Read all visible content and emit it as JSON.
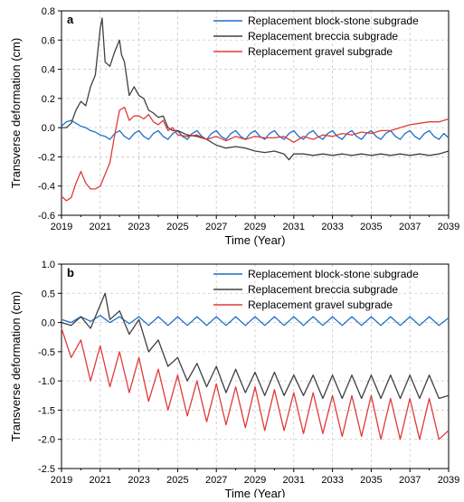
{
  "figure": {
    "panels": [
      {
        "label": "a",
        "xlabel": "Time (Year)",
        "ylabel": "Transverse deformation (cm)"
      },
      {
        "label": "b",
        "xlabel": "Time (Year)",
        "ylabel": "Transverse deformation (cm)"
      }
    ]
  },
  "chart_data": [
    {
      "type": "line",
      "panel": "a",
      "title": "",
      "xlabel": "Time (Year)",
      "ylabel": "Transverse deformation (cm)",
      "xlim": [
        2019,
        2039
      ],
      "ylim": [
        -0.6,
        0.8
      ],
      "xticks": [
        "2019",
        "2021",
        "2023",
        "2025",
        "2027",
        "2029",
        "2031",
        "2033",
        "2035",
        "2037",
        "2039"
      ],
      "yticks": [
        "-0.6",
        "-0.4",
        "-0.2",
        "0.0",
        "0.2",
        "0.4",
        "0.6",
        "0.8"
      ],
      "grid": true,
      "legend_position": "top-right",
      "series": [
        {
          "name": "Replacement block-stone subgrade",
          "color": "#1f6fc9",
          "x": [
            2019.0,
            2019.25,
            2019.5,
            2019.75,
            2020.0,
            2020.25,
            2020.5,
            2020.75,
            2021.0,
            2021.25,
            2021.5,
            2021.75,
            2022.0,
            2022.25,
            2022.5,
            2022.75,
            2023.0,
            2023.25,
            2023.5,
            2023.75,
            2024.0,
            2024.25,
            2024.5,
            2024.75,
            2025.0,
            2025.25,
            2025.5,
            2025.75,
            2026.0,
            2026.25,
            2026.5,
            2026.75,
            2027.0,
            2027.25,
            2027.5,
            2027.75,
            2028.0,
            2028.25,
            2028.5,
            2028.75,
            2029.0,
            2029.25,
            2029.5,
            2029.75,
            2030.0,
            2030.25,
            2030.5,
            2030.75,
            2031.0,
            2031.25,
            2031.5,
            2031.75,
            2032.0,
            2032.25,
            2032.5,
            2032.75,
            2033.0,
            2033.25,
            2033.5,
            2033.75,
            2034.0,
            2034.25,
            2034.5,
            2034.75,
            2035.0,
            2035.25,
            2035.5,
            2035.75,
            2036.0,
            2036.25,
            2036.5,
            2036.75,
            2037.0,
            2037.25,
            2037.5,
            2037.75,
            2038.0,
            2038.25,
            2038.5,
            2038.75,
            2039.0
          ],
          "y": [
            0.01,
            0.04,
            0.05,
            0.03,
            0.01,
            0.0,
            -0.02,
            -0.03,
            -0.05,
            -0.06,
            -0.08,
            -0.04,
            -0.02,
            -0.06,
            -0.08,
            -0.04,
            -0.02,
            -0.06,
            -0.08,
            -0.04,
            -0.02,
            -0.06,
            -0.08,
            -0.04,
            -0.02,
            -0.06,
            -0.08,
            -0.04,
            -0.02,
            -0.06,
            -0.08,
            -0.04,
            -0.02,
            -0.06,
            -0.08,
            -0.04,
            -0.02,
            -0.06,
            -0.08,
            -0.04,
            -0.02,
            -0.06,
            -0.08,
            -0.04,
            -0.02,
            -0.06,
            -0.08,
            -0.04,
            -0.02,
            -0.06,
            -0.08,
            -0.04,
            -0.02,
            -0.06,
            -0.08,
            -0.04,
            -0.02,
            -0.06,
            -0.08,
            -0.04,
            -0.02,
            -0.06,
            -0.08,
            -0.04,
            -0.02,
            -0.06,
            -0.08,
            -0.04,
            -0.02,
            -0.06,
            -0.08,
            -0.04,
            -0.02,
            -0.06,
            -0.08,
            -0.04,
            -0.02,
            -0.06,
            -0.08,
            -0.04,
            -0.07
          ]
        },
        {
          "name": "Replacement breccia subgrade",
          "color": "#404040",
          "x": [
            2019.0,
            2019.25,
            2019.5,
            2019.75,
            2020.0,
            2020.25,
            2020.5,
            2020.75,
            2021.0,
            2021.1,
            2021.25,
            2021.5,
            2021.75,
            2022.0,
            2022.1,
            2022.25,
            2022.5,
            2022.75,
            2023.0,
            2023.25,
            2023.5,
            2023.75,
            2024.0,
            2024.25,
            2024.5,
            2024.75,
            2025.0,
            2025.5,
            2026.0,
            2026.5,
            2027.0,
            2027.5,
            2028.0,
            2028.5,
            2029.0,
            2029.5,
            2030.0,
            2030.5,
            2030.75,
            2031.0,
            2031.5,
            2032.0,
            2032.5,
            2033.0,
            2033.5,
            2034.0,
            2034.5,
            2035.0,
            2035.5,
            2036.0,
            2036.5,
            2037.0,
            2037.5,
            2038.0,
            2038.5,
            2039.0
          ],
          "y": [
            0.0,
            0.0,
            0.03,
            0.12,
            0.18,
            0.15,
            0.28,
            0.36,
            0.68,
            0.75,
            0.45,
            0.42,
            0.52,
            0.6,
            0.5,
            0.45,
            0.22,
            0.28,
            0.22,
            0.2,
            0.12,
            0.1,
            0.07,
            0.08,
            0.0,
            -0.02,
            -0.02,
            -0.05,
            -0.06,
            -0.08,
            -0.12,
            -0.14,
            -0.13,
            -0.14,
            -0.16,
            -0.17,
            -0.16,
            -0.18,
            -0.22,
            -0.18,
            -0.18,
            -0.19,
            -0.18,
            -0.19,
            -0.18,
            -0.19,
            -0.18,
            -0.19,
            -0.18,
            -0.19,
            -0.18,
            -0.19,
            -0.18,
            -0.19,
            -0.18,
            -0.16
          ]
        },
        {
          "name": "Replacement gravel subgrade",
          "color": "#e03b3b",
          "x": [
            2019.0,
            2019.25,
            2019.5,
            2019.75,
            2020.0,
            2020.25,
            2020.5,
            2020.75,
            2021.0,
            2021.25,
            2021.5,
            2021.75,
            2022.0,
            2022.25,
            2022.5,
            2022.75,
            2023.0,
            2023.25,
            2023.5,
            2023.75,
            2024.0,
            2024.25,
            2024.5,
            2024.75,
            2025.0,
            2025.5,
            2026.0,
            2026.5,
            2027.0,
            2027.5,
            2028.0,
            2028.5,
            2029.0,
            2029.5,
            2030.0,
            2030.5,
            2031.0,
            2031.5,
            2032.0,
            2032.5,
            2033.0,
            2033.5,
            2034.0,
            2034.5,
            2035.0,
            2035.5,
            2036.0,
            2036.5,
            2037.0,
            2037.5,
            2038.0,
            2038.5,
            2039.0
          ],
          "y": [
            -0.47,
            -0.5,
            -0.48,
            -0.38,
            -0.3,
            -0.38,
            -0.42,
            -0.42,
            -0.4,
            -0.32,
            -0.24,
            -0.05,
            0.12,
            0.14,
            0.05,
            0.08,
            0.08,
            0.06,
            0.09,
            0.04,
            0.02,
            0.05,
            -0.02,
            0.0,
            -0.05,
            -0.06,
            -0.05,
            -0.08,
            -0.06,
            -0.09,
            -0.06,
            -0.08,
            -0.06,
            -0.07,
            -0.07,
            -0.06,
            -0.1,
            -0.06,
            -0.08,
            -0.05,
            -0.06,
            -0.04,
            -0.05,
            -0.03,
            -0.04,
            -0.02,
            -0.02,
            0.0,
            0.02,
            0.03,
            0.04,
            0.04,
            0.06
          ]
        }
      ]
    },
    {
      "type": "line",
      "panel": "b",
      "title": "",
      "xlabel": "Time (Year)",
      "ylabel": "Transverse deformation (cm)",
      "xlim": [
        2019,
        2039
      ],
      "ylim": [
        -2.5,
        1.0
      ],
      "xticks": [
        "2019",
        "2021",
        "2023",
        "2025",
        "2027",
        "2029",
        "2031",
        "2033",
        "2035",
        "2037",
        "2039"
      ],
      "yticks": [
        "-2.5",
        "-2.0",
        "-1.5",
        "-1.0",
        "-0.5",
        "0.0",
        "0.5",
        "1.0"
      ],
      "grid": true,
      "legend_position": "top-right",
      "series": [
        {
          "name": "Replacement block-stone subgrade",
          "color": "#1f6fc9",
          "x": [
            2019.0,
            2019.5,
            2020.0,
            2020.5,
            2021.0,
            2021.5,
            2022.0,
            2022.5,
            2023.0,
            2023.5,
            2024.0,
            2024.5,
            2025.0,
            2025.5,
            2026.0,
            2026.5,
            2027.0,
            2027.5,
            2028.0,
            2028.5,
            2029.0,
            2029.5,
            2030.0,
            2030.5,
            2031.0,
            2031.5,
            2032.0,
            2032.5,
            2033.0,
            2033.5,
            2034.0,
            2034.5,
            2035.0,
            2035.5,
            2036.0,
            2036.5,
            2037.0,
            2037.5,
            2038.0,
            2038.5,
            2039.0
          ],
          "y": [
            0.05,
            0.0,
            0.1,
            0.02,
            0.12,
            0.0,
            0.1,
            -0.02,
            0.1,
            -0.05,
            0.1,
            -0.05,
            0.1,
            -0.05,
            0.1,
            -0.05,
            0.1,
            -0.05,
            0.1,
            -0.05,
            0.1,
            -0.05,
            0.1,
            -0.05,
            0.1,
            -0.05,
            0.1,
            -0.05,
            0.1,
            -0.05,
            0.1,
            -0.05,
            0.1,
            -0.05,
            0.1,
            -0.05,
            0.1,
            -0.05,
            0.1,
            -0.05,
            0.08
          ]
        },
        {
          "name": "Replacement breccia subgrade",
          "color": "#404040",
          "x": [
            2019.0,
            2019.5,
            2020.0,
            2020.5,
            2021.0,
            2021.25,
            2021.5,
            2022.0,
            2022.5,
            2023.0,
            2023.5,
            2024.0,
            2024.5,
            2025.0,
            2025.5,
            2026.0,
            2026.5,
            2027.0,
            2027.5,
            2028.0,
            2028.5,
            2029.0,
            2029.5,
            2030.0,
            2030.5,
            2031.0,
            2031.5,
            2032.0,
            2032.5,
            2033.0,
            2033.5,
            2034.0,
            2034.5,
            2035.0,
            2035.5,
            2036.0,
            2036.5,
            2037.0,
            2037.5,
            2038.0,
            2038.5,
            2039.0
          ],
          "y": [
            0.0,
            -0.05,
            0.1,
            -0.1,
            0.3,
            0.5,
            0.05,
            0.2,
            -0.2,
            0.05,
            -0.5,
            -0.3,
            -0.75,
            -0.6,
            -1.0,
            -0.7,
            -1.1,
            -0.75,
            -1.2,
            -0.8,
            -1.2,
            -0.85,
            -1.25,
            -0.85,
            -1.25,
            -0.9,
            -1.25,
            -0.9,
            -1.3,
            -0.9,
            -1.3,
            -0.9,
            -1.3,
            -0.9,
            -1.3,
            -0.9,
            -1.3,
            -0.9,
            -1.3,
            -0.9,
            -1.3,
            -1.25
          ]
        },
        {
          "name": "Replacement gravel subgrade",
          "color": "#e03b3b",
          "x": [
            2019.0,
            2019.5,
            2020.0,
            2020.5,
            2021.0,
            2021.5,
            2022.0,
            2022.5,
            2023.0,
            2023.5,
            2024.0,
            2024.5,
            2025.0,
            2025.5,
            2026.0,
            2026.5,
            2027.0,
            2027.5,
            2028.0,
            2028.5,
            2029.0,
            2029.5,
            2030.0,
            2030.5,
            2031.0,
            2031.5,
            2032.0,
            2032.5,
            2033.0,
            2033.5,
            2034.0,
            2034.5,
            2035.0,
            2035.5,
            2036.0,
            2036.5,
            2037.0,
            2037.5,
            2038.0,
            2038.5,
            2039.0
          ],
          "y": [
            -0.1,
            -0.6,
            -0.3,
            -1.0,
            -0.4,
            -1.1,
            -0.5,
            -1.2,
            -0.6,
            -1.35,
            -0.8,
            -1.5,
            -0.9,
            -1.6,
            -1.0,
            -1.7,
            -1.05,
            -1.75,
            -1.1,
            -1.8,
            -1.1,
            -1.85,
            -1.15,
            -1.85,
            -1.2,
            -1.9,
            -1.2,
            -1.9,
            -1.25,
            -1.95,
            -1.25,
            -1.95,
            -1.25,
            -2.0,
            -1.3,
            -2.0,
            -1.3,
            -2.0,
            -1.3,
            -2.0,
            -1.85
          ]
        }
      ]
    }
  ]
}
